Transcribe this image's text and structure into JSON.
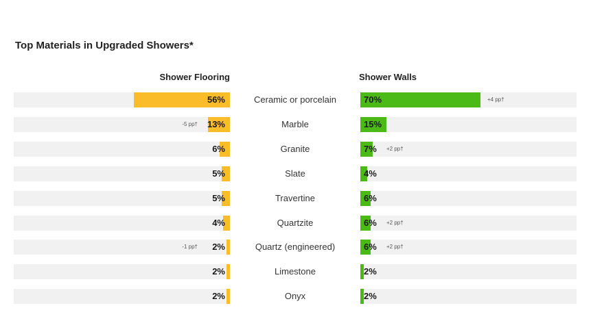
{
  "title": "Top Materials in Upgraded Showers*",
  "left_header": "Shower Flooring",
  "right_header": "Shower Walls",
  "colors": {
    "flooring": "#fbbc2a",
    "walls": "#4cba16",
    "track": "#f1f1f1"
  },
  "chart_data": [
    {
      "type": "bar",
      "orientation": "horizontal",
      "title": "Shower Flooring",
      "categories": [
        "Ceramic or porcelain",
        "Marble",
        "Granite",
        "Slate",
        "Travertine",
        "Quartzite",
        "Quartz (engineered)",
        "Limestone",
        "Onyx"
      ],
      "values": [
        56,
        13,
        6,
        5,
        5,
        4,
        2,
        2,
        2
      ],
      "labels": [
        "56%",
        "13%",
        "6%",
        "5%",
        "5%",
        "4%",
        "2%",
        "2%",
        "2%"
      ],
      "annotations": [
        "",
        "-5 pp†",
        "",
        "",
        "",
        "",
        "-1 pp†",
        "",
        ""
      ],
      "xlim": [
        0,
        100
      ]
    },
    {
      "type": "bar",
      "orientation": "horizontal",
      "title": "Shower Walls",
      "categories": [
        "Ceramic or porcelain",
        "Marble",
        "Granite",
        "Slate",
        "Travertine",
        "Quartzite",
        "Quartz (engineered)",
        "Limestone",
        "Onyx"
      ],
      "values": [
        70,
        15,
        7,
        4,
        6,
        6,
        6,
        2,
        2
      ],
      "labels": [
        "70%",
        "15%",
        "7%",
        "4%",
        "6%",
        "6%",
        "6%",
        "2%",
        "2%"
      ],
      "annotations": [
        "+4 pp†",
        "",
        "+2 pp†",
        "",
        "",
        "+2 pp†",
        "+2 pp†",
        "",
        ""
      ],
      "xlim": [
        0,
        100
      ]
    }
  ]
}
